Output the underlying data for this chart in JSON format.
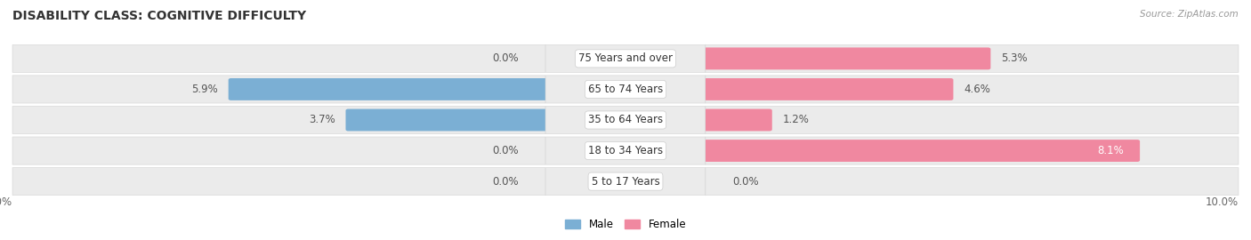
{
  "title": "DISABILITY CLASS: COGNITIVE DIFFICULTY",
  "source": "Source: ZipAtlas.com",
  "categories": [
    "5 to 17 Years",
    "18 to 34 Years",
    "35 to 64 Years",
    "65 to 74 Years",
    "75 Years and over"
  ],
  "male_values": [
    0.0,
    0.0,
    3.7,
    5.9,
    0.0
  ],
  "female_values": [
    0.0,
    8.1,
    1.2,
    4.6,
    5.3
  ],
  "male_color": "#7bafd4",
  "female_color": "#f088a0",
  "row_bg_color": "#ebebeb",
  "row_bg_edge": "#d8d8d8",
  "xlim_max": 10.0,
  "title_fontsize": 10,
  "label_fontsize": 8.5,
  "source_fontsize": 7.5,
  "bar_height": 0.62,
  "background_color": "#ffffff"
}
